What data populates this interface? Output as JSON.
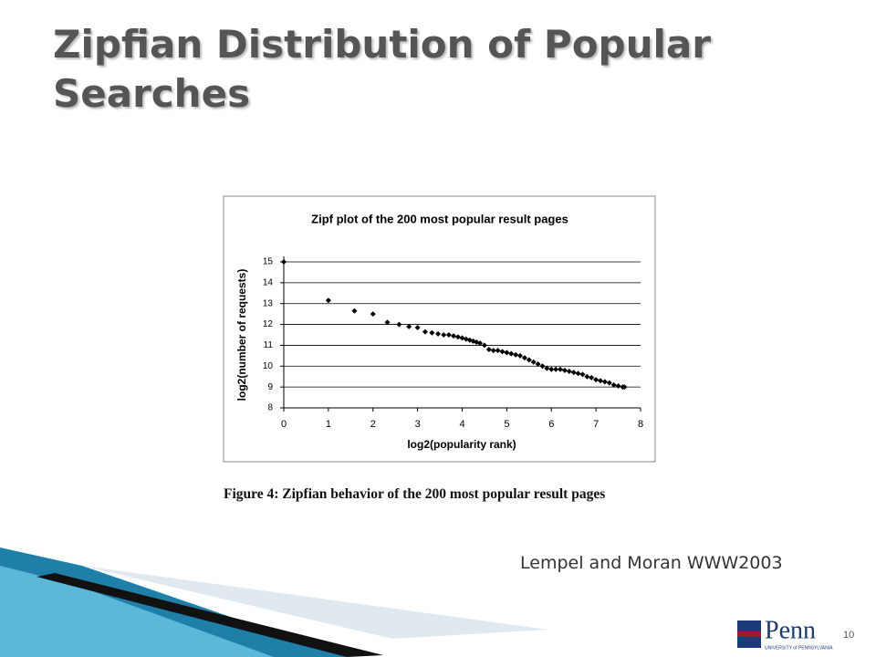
{
  "slide": {
    "title": "Zipfian Distribution of Popular Searches",
    "caption": "Figure 4: Zipfian behavior of the 200 most popular result pages",
    "citation": "Lempel and Moran WWW2003",
    "page_number": "10",
    "logo": "Penn",
    "logo_subtitle": "UNIVERSITY of PENNSYLVANIA"
  },
  "chart_data": {
    "type": "scatter",
    "title": "Zipf plot of the 200 most popular result pages",
    "x_label": "log2(popularity rank)",
    "y_label": "log2(number of requests)",
    "x": [
      0,
      1,
      1.585,
      2,
      2.322,
      2.585,
      2.807,
      3,
      3.17,
      3.322,
      3.459,
      3.585,
      3.7,
      3.807,
      3.907,
      4,
      4.087,
      4.17,
      4.248,
      4.322,
      4.4,
      4.5,
      4.6,
      4.7,
      4.8,
      4.9,
      5.0,
      5.1,
      5.2,
      5.3,
      5.4,
      5.5,
      5.6,
      5.7,
      5.8,
      5.9,
      6.0,
      6.1,
      6.2,
      6.3,
      6.4,
      6.5,
      6.6,
      6.7,
      6.8,
      6.9,
      7.0,
      7.1,
      7.2,
      7.3,
      7.4,
      7.5,
      7.6,
      7.64
    ],
    "values": [
      15,
      13.15,
      12.65,
      12.5,
      12.1,
      12.0,
      11.9,
      11.85,
      11.65,
      11.6,
      11.55,
      11.5,
      11.5,
      11.45,
      11.4,
      11.35,
      11.3,
      11.25,
      11.2,
      11.15,
      11.1,
      11.0,
      10.8,
      10.75,
      10.75,
      10.7,
      10.65,
      10.6,
      10.55,
      10.5,
      10.4,
      10.3,
      10.2,
      10.1,
      10.0,
      9.9,
      9.85,
      9.85,
      9.85,
      9.8,
      9.75,
      9.7,
      9.65,
      9.6,
      9.5,
      9.45,
      9.35,
      9.3,
      9.25,
      9.2,
      9.1,
      9.05,
      9.0,
      9.0
    ],
    "color": "#000000",
    "xlim": [
      0,
      8
    ],
    "xticks": [
      0,
      1,
      2,
      3,
      4,
      5,
      6,
      7,
      8
    ],
    "ylim": [
      8,
      15
    ],
    "yticks": [
      8,
      9,
      10,
      11,
      12,
      13,
      14,
      15
    ],
    "grid": true
  }
}
